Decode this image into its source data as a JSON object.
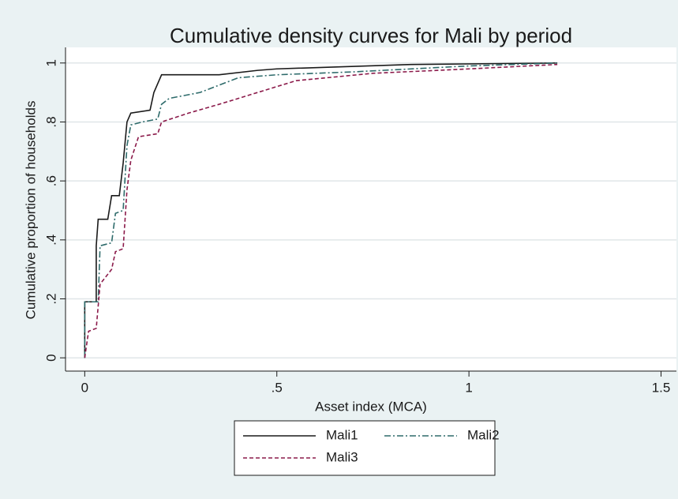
{
  "chart_data": {
    "type": "line",
    "title": "Cumulative density curves for Mali by period",
    "x_label": "Asset index (MCA)",
    "y_label": "Cumulative proportion of households",
    "xlim": [
      -0.05,
      1.54
    ],
    "ylim": [
      -0.045,
      1.053
    ],
    "xticks": [
      0,
      {
        "value": 0.5,
        "label": ".5"
      },
      1,
      1.5
    ],
    "yticks": [
      0,
      {
        "value": 0.2,
        "label": ".2"
      },
      {
        "value": 0.4,
        "label": ".4"
      },
      {
        "value": 0.6,
        "label": ".6"
      },
      {
        "value": 0.8,
        "label": ".8"
      },
      1
    ],
    "grid": true,
    "legend": "bottom",
    "series": [
      {
        "name": "Mali1",
        "color": "#1a1a1a",
        "dash": "solid",
        "x": [
          0,
          0,
          0.03,
          0.03,
          0.035,
          0.06,
          0.07,
          0.09,
          0.1,
          0.11,
          0.12,
          0.17,
          0.18,
          0.2,
          0.35,
          0.45,
          0.5,
          0.85,
          1.23
        ],
        "values": [
          0,
          0.19,
          0.19,
          0.38,
          0.47,
          0.47,
          0.55,
          0.55,
          0.66,
          0.8,
          0.83,
          0.84,
          0.9,
          0.96,
          0.96,
          0.975,
          0.98,
          0.995,
          1.0
        ]
      },
      {
        "name": "Mali2",
        "color": "#2e6b6b",
        "dash": "dash-dot",
        "x": [
          0,
          0,
          0.035,
          0.04,
          0.07,
          0.08,
          0.1,
          0.11,
          0.12,
          0.15,
          0.19,
          0.2,
          0.22,
          0.3,
          0.4,
          0.5,
          0.7,
          1.0,
          1.23
        ],
        "values": [
          0,
          0.19,
          0.19,
          0.38,
          0.39,
          0.49,
          0.5,
          0.72,
          0.79,
          0.8,
          0.81,
          0.86,
          0.88,
          0.9,
          0.95,
          0.96,
          0.97,
          0.99,
          1.0
        ]
      },
      {
        "name": "Mali3",
        "color": "#8b1a4a",
        "dash": "dash",
        "x": [
          0,
          0.01,
          0.03,
          0.04,
          0.07,
          0.08,
          0.1,
          0.11,
          0.12,
          0.14,
          0.19,
          0.2,
          0.27,
          0.35,
          0.45,
          0.55,
          0.75,
          1.0,
          1.23
        ],
        "values": [
          0,
          0.09,
          0.1,
          0.25,
          0.3,
          0.36,
          0.37,
          0.57,
          0.67,
          0.75,
          0.76,
          0.8,
          0.83,
          0.86,
          0.9,
          0.94,
          0.965,
          0.98,
          0.995
        ]
      }
    ]
  }
}
